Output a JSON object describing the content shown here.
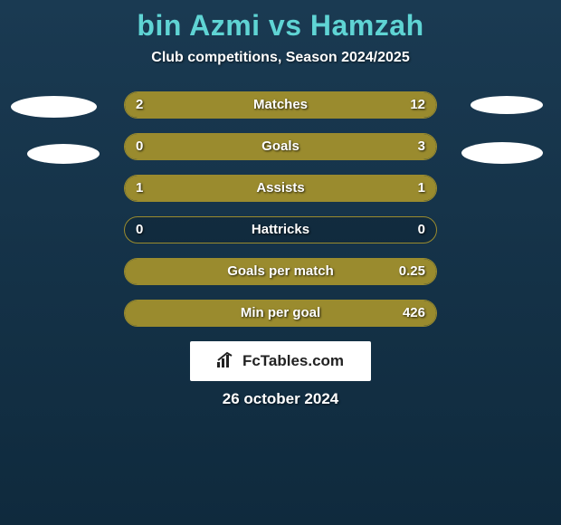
{
  "title": "bin Azmi vs Hamzah",
  "subtitle": "Club competitions, Season 2024/2025",
  "date": "26 october 2024",
  "attribution": "FcTables.com",
  "colors": {
    "background_gradient_top": "#1a3a52",
    "background_gradient_bottom": "#0f2a3d",
    "title_color": "#5fd4d4",
    "bar_fill": "#9a8b2e",
    "bar_border": "#9a8b2e",
    "text": "#ffffff"
  },
  "bars": [
    {
      "label": "Matches",
      "left": "2",
      "right": "12",
      "left_pct": 14,
      "right_pct": 86
    },
    {
      "label": "Goals",
      "left": "0",
      "right": "3",
      "left_pct": 0,
      "right_pct": 100
    },
    {
      "label": "Assists",
      "left": "1",
      "right": "1",
      "left_pct": 50,
      "right_pct": 50
    },
    {
      "label": "Hattricks",
      "left": "0",
      "right": "0",
      "left_pct": 0,
      "right_pct": 0
    },
    {
      "label": "Goals per match",
      "left": "",
      "right": "0.25",
      "left_pct": 0,
      "right_pct": 100
    },
    {
      "label": "Min per goal",
      "left": "",
      "right": "426",
      "left_pct": 0,
      "right_pct": 100
    }
  ]
}
